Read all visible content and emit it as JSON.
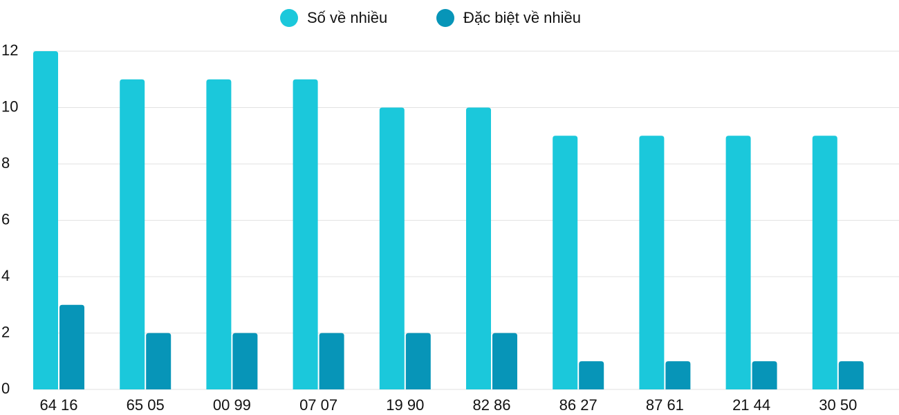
{
  "chart_data": {
    "type": "bar",
    "categories": [
      "64 16",
      "65 05",
      "00 99",
      "07 07",
      "19 90",
      "82 86",
      "86 27",
      "87 61",
      "21 44",
      "30 50"
    ],
    "series": [
      {
        "name": "Số về nhiều",
        "color": "#1bc8db",
        "values": [
          12,
          11,
          11,
          11,
          10,
          10,
          9,
          9,
          9,
          9
        ]
      },
      {
        "name": "Đặc biệt về nhiều",
        "color": "#0795b8",
        "values": [
          3,
          2,
          2,
          2,
          2,
          2,
          1,
          1,
          1,
          1
        ]
      }
    ],
    "ylim": [
      0,
      12
    ],
    "yticks": [
      0,
      2,
      4,
      6,
      8,
      10,
      12
    ],
    "grid": true,
    "legend": "top"
  }
}
